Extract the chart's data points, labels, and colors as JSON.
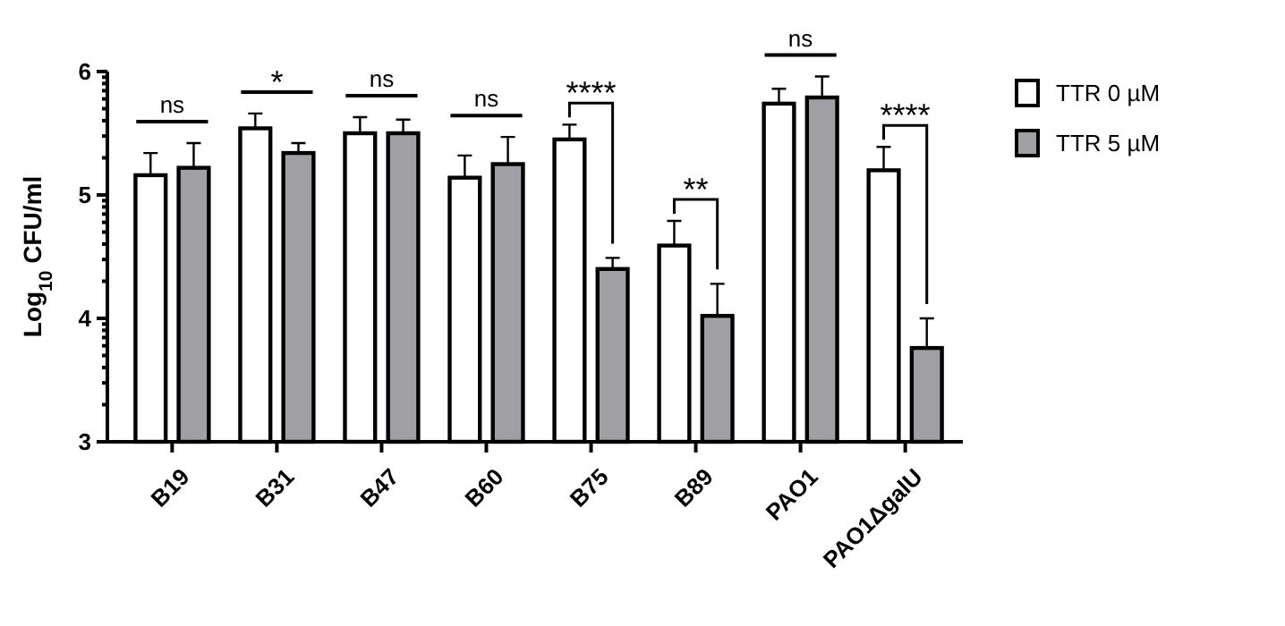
{
  "chart_data": {
    "type": "bar",
    "ylabel": "Log$_{10}$ CFU/ml",
    "categories": [
      "B19",
      "B31",
      "B47",
      "B60",
      "B75",
      "B89",
      "PAO1",
      "PAO1ΔgalU"
    ],
    "series": [
      {
        "name": "TTR 0 µM",
        "color": "#ffffff",
        "values": [
          5.16,
          5.54,
          5.5,
          5.14,
          5.45,
          4.59,
          5.74,
          5.2
        ],
        "errors": [
          [
            5.16,
            5.34
          ],
          [
            5.54,
            5.66
          ],
          [
            5.5,
            5.63
          ],
          [
            5.14,
            5.32
          ],
          [
            5.45,
            5.57
          ],
          [
            4.59,
            4.79
          ],
          [
            5.74,
            5.86
          ],
          [
            5.2,
            5.39
          ]
        ]
      },
      {
        "name": "TTR 5 µM",
        "color": "#a0a0a4",
        "values": [
          5.22,
          5.34,
          5.5,
          5.25,
          4.4,
          4.02,
          5.79,
          3.76
        ],
        "errors": [
          [
            5.22,
            5.42
          ],
          [
            5.34,
            5.42
          ],
          [
            5.5,
            5.61
          ],
          [
            5.25,
            5.47
          ],
          [
            4.4,
            4.49
          ],
          [
            4.02,
            4.28
          ],
          [
            5.79,
            5.96
          ],
          [
            3.76,
            4
          ]
        ]
      }
    ],
    "ylim": [
      3,
      6
    ],
    "yticks": [
      3,
      {
        "value": 3.301,
        "label": null
      },
      {
        "value": 3.477,
        "label": null
      },
      {
        "value": 3.602,
        "label": null
      },
      {
        "value": 3.699,
        "label": null
      },
      {
        "value": 3.778,
        "label": null
      },
      {
        "value": 3.845,
        "label": null
      },
      {
        "value": 3.903,
        "label": null
      },
      {
        "value": 3.954,
        "label": null
      },
      4,
      {
        "value": 4.301,
        "label": null
      },
      {
        "value": 4.477,
        "label": null
      },
      {
        "value": 4.602,
        "label": null
      },
      {
        "value": 4.699,
        "label": null
      },
      {
        "value": 4.778,
        "label": null
      },
      {
        "value": 4.845,
        "label": null
      },
      {
        "value": 4.903,
        "label": null
      },
      {
        "value": 4.954,
        "label": null
      },
      5,
      {
        "value": 5.301,
        "label": null
      },
      {
        "value": 5.477,
        "label": null
      },
      {
        "value": 5.602,
        "label": null
      },
      {
        "value": 5.699,
        "label": null
      },
      {
        "value": 5.778,
        "label": null
      },
      {
        "value": 5.845,
        "label": null
      },
      {
        "value": 5.903,
        "label": null
      },
      {
        "value": 5.954,
        "label": null
      },
      6
    ],
    "annotations": [
      "ns",
      "*",
      "ns",
      "ns",
      "****",
      "**",
      "ns",
      "****"
    ],
    "grid": false,
    "legend": "right"
  }
}
